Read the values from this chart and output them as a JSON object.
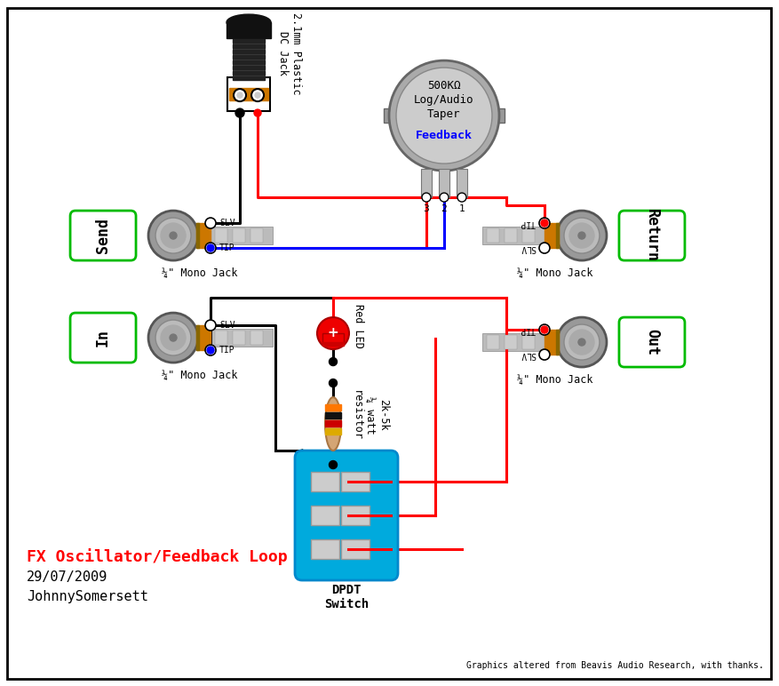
{
  "title": "FX Oscillator/Feedback Loop",
  "date": "29/07/2009",
  "author": "JohnnySomersett",
  "credit": "Graphics altered from Beavis Audio Research, with thanks.",
  "bg_color": "#ffffff",
  "border_color": "#000000",
  "wire_red": "#ff0000",
  "wire_blue": "#0000ff",
  "wire_black": "#000000",
  "green_box": "#00bb00",
  "dpdt_color": "#00aadd",
  "orange": "#cc7700",
  "gray_light": "#cccccc",
  "gray_mid": "#aaaaaa",
  "gray_dark": "#888888"
}
